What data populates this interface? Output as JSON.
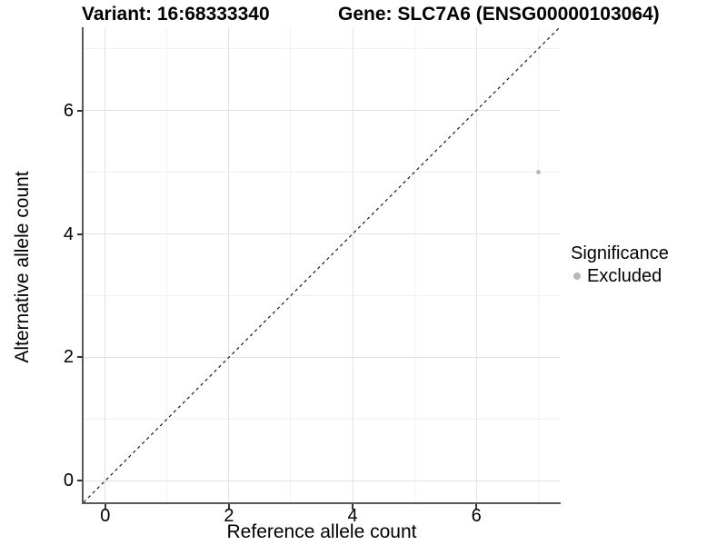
{
  "titles": {
    "variant": "Variant: 16:68333340",
    "gene": "Gene: SLC7A6 (ENSG00000103064)"
  },
  "chart_data": {
    "type": "scatter",
    "title_left": "Variant: 16:68333340",
    "title_right": "Gene: SLC7A6 (ENSG00000103064)",
    "xlabel": "Reference allele count",
    "ylabel": "Alternative allele count",
    "xlim": [
      -0.35,
      7.35
    ],
    "ylim": [
      -0.35,
      7.35
    ],
    "x_major_ticks": [
      0,
      2,
      4,
      6
    ],
    "x_minor_ticks": [
      1,
      3,
      5,
      7
    ],
    "y_major_ticks": [
      0,
      2,
      4,
      6
    ],
    "y_minor_ticks": [
      1,
      3,
      5,
      7
    ],
    "grid": true,
    "reference_line": {
      "kind": "identity",
      "style": "dashed",
      "color": "#1a1a1a"
    },
    "series": [
      {
        "name": "Excluded",
        "color": "#b8b8b8",
        "points": [
          {
            "x": 7,
            "y": 5
          }
        ]
      }
    ],
    "legend": {
      "position": "right",
      "title": "Significance",
      "items": [
        {
          "label": "Excluded",
          "color": "#b8b8b8",
          "marker": "circle"
        }
      ]
    }
  }
}
